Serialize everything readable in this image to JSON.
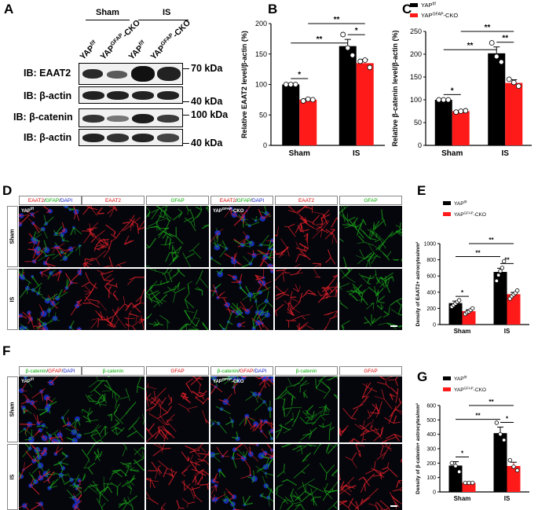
{
  "panels": {
    "A": "A",
    "B": "B",
    "C": "C",
    "D": "D",
    "E": "E",
    "F": "F",
    "G": "G"
  },
  "western": {
    "groups": [
      "Sham",
      "IS"
    ],
    "lanes": [
      {
        "base": "YAP",
        "sup": "f/f"
      },
      {
        "base": "YAP",
        "sup": "GFAP",
        "suffix": "-CKO"
      },
      {
        "base": "YAP",
        "sup": "f/f"
      },
      {
        "base": "YAP",
        "sup": "GFAP",
        "suffix": "-CKO"
      }
    ],
    "blots": [
      {
        "label": "IB: EAAT2",
        "mw": "70 kDa",
        "mw_side": "top"
      },
      {
        "label": "IB: β-actin",
        "mw": "40 kDa",
        "mw_side": "bottom"
      },
      {
        "label": "IB: β-catenin",
        "mw": "100 kDa",
        "mw_side": "top"
      },
      {
        "label": "IB: β-actin",
        "mw": "40 kDa",
        "mw_side": "bottom"
      }
    ]
  },
  "legend": {
    "ff": {
      "base": "YAP",
      "sup": "f/f"
    },
    "cko": {
      "base": "YAP",
      "sup": "GFAP",
      "suffix": "-CKO"
    }
  },
  "colors": {
    "ff": "#000000",
    "cko": "#ff1a1a",
    "merge_red": "#e8202a",
    "merge_green": "#1aa51a",
    "merge_blue": "#1a33cc"
  },
  "chart_data": [
    {
      "panel": "B",
      "type": "bar",
      "ylabel": "Relative EAAT2 level/β-actin (%)",
      "categories": [
        "Sham",
        "IS"
      ],
      "ylim": [
        0,
        200
      ],
      "yticks": [
        0,
        50,
        100,
        150,
        200
      ],
      "series": [
        {
          "name": "YAP f/f",
          "values": [
            100,
            163
          ],
          "error": [
            2,
            11
          ],
          "points": [
            [
              100,
              100,
              100
            ],
            [
              182,
              160,
              148
            ]
          ]
        },
        {
          "name": "YAP GFAP-CKO",
          "values": [
            75,
            135
          ],
          "error": [
            2,
            6
          ],
          "points": [
            [
              73,
              76,
              75
            ],
            [
              138,
              140,
              128
            ]
          ]
        }
      ],
      "sig": [
        {
          "label": "*"
        },
        {
          "label": "**"
        },
        {
          "label": "*"
        },
        {
          "label": "**"
        }
      ]
    },
    {
      "panel": "C",
      "type": "bar",
      "ylabel": "Relative β-catenin level/β-actin (%)",
      "categories": [
        "Sham",
        "IS"
      ],
      "ylim": [
        0,
        250
      ],
      "yticks": [
        0,
        50,
        100,
        150,
        200,
        250
      ],
      "series": [
        {
          "name": "YAP f/f",
          "values": [
            100,
            202
          ],
          "error": [
            1,
            14
          ],
          "points": [
            [
              100,
              100,
              100
            ],
            [
              225,
              195,
              183
            ]
          ]
        },
        {
          "name": "YAP GFAP-CKO",
          "values": [
            75,
            137
          ],
          "error": [
            1,
            7
          ],
          "points": [
            [
              73,
              75,
              76
            ],
            [
              145,
              138,
              130
            ]
          ]
        }
      ],
      "sig": [
        {
          "label": "*"
        },
        {
          "label": "**"
        },
        {
          "label": "**"
        },
        {
          "label": "**"
        }
      ]
    },
    {
      "panel": "E",
      "type": "bar",
      "ylabel": "Density of EAAT2+ astrocytes/mm²",
      "categories": [
        "Sham",
        "IS"
      ],
      "ylim": [
        0,
        1000
      ],
      "yticks": [
        0,
        200,
        400,
        600,
        800,
        1000
      ],
      "series": [
        {
          "name": "YAP f/f",
          "values": [
            265,
            650
          ],
          "error": [
            25,
            45
          ],
          "points": [
            [
              220,
              240,
              260,
              280,
              300
            ],
            [
              540,
              610,
              660,
              700,
              780
            ]
          ]
        },
        {
          "name": "YAP GFAP-CKO",
          "values": [
            165,
            375
          ],
          "error": [
            18,
            22
          ],
          "points": [
            [
              130,
              150,
              160,
              180,
              200
            ],
            [
              320,
              350,
              370,
              390,
              420
            ]
          ]
        }
      ],
      "sig": [
        {
          "label": "*"
        },
        {
          "label": "**"
        },
        {
          "label": "**"
        },
        {
          "label": "**"
        }
      ]
    },
    {
      "panel": "G",
      "type": "bar",
      "ylabel": "Density of β-catenin+ astrocytes/mm²",
      "categories": [
        "Sham",
        "IS"
      ],
      "ylim": [
        0,
        600
      ],
      "yticks": [
        0,
        100,
        200,
        300,
        400,
        500,
        600
      ],
      "series": [
        {
          "name": "YAP f/f",
          "values": [
            183,
            408
          ],
          "error": [
            27,
            42
          ],
          "points": [
            [
              200,
              180,
              140
            ],
            [
              480,
              400,
              360
            ]
          ]
        },
        {
          "name": "YAP GFAP-CKO",
          "values": [
            63,
            180
          ],
          "error": [
            2,
            26
          ],
          "points": [
            [
              63,
              63,
              63
            ],
            [
              220,
              175,
              150
            ]
          ]
        }
      ],
      "sig": [
        {
          "label": "*"
        },
        {
          "label": "**"
        },
        {
          "label": "*"
        },
        {
          "label": "**"
        }
      ]
    }
  ],
  "micro_D": {
    "headers": [
      {
        "parts": [
          {
            "t": "EAAT2",
            "c": "red"
          },
          {
            "t": "/",
            "c": "k"
          },
          {
            "t": "GFAP",
            "c": "green"
          },
          {
            "t": "/",
            "c": "k"
          },
          {
            "t": "DAPI",
            "c": "blue"
          }
        ]
      },
      {
        "parts": [
          {
            "t": "EAAT2",
            "c": "red"
          }
        ]
      },
      {
        "parts": [
          {
            "t": "GFAP",
            "c": "green"
          }
        ]
      },
      {
        "parts": [
          {
            "t": "EAAT2",
            "c": "red"
          },
          {
            "t": "/",
            "c": "k"
          },
          {
            "t": "GFAP",
            "c": "green"
          },
          {
            "t": "/",
            "c": "k"
          },
          {
            "t": "DAPI",
            "c": "blue"
          }
        ]
      },
      {
        "parts": [
          {
            "t": "EAAT2",
            "c": "red"
          }
        ]
      },
      {
        "parts": [
          {
            "t": "GFAP",
            "c": "green"
          }
        ]
      }
    ],
    "rows": [
      "Sham",
      "IS"
    ],
    "geno_labels": [
      {
        "base": "YAP",
        "sup": "f/f"
      },
      {
        "base": "YAP",
        "sup": "GFAP",
        "suffix": "-CKO"
      }
    ]
  },
  "micro_F": {
    "headers": [
      {
        "parts": [
          {
            "t": "β-catenin",
            "c": "green"
          },
          {
            "t": "/",
            "c": "k"
          },
          {
            "t": "GFAP",
            "c": "red"
          },
          {
            "t": "/",
            "c": "k"
          },
          {
            "t": "DAPI",
            "c": "blue"
          }
        ]
      },
      {
        "parts": [
          {
            "t": "β-catenin",
            "c": "green"
          }
        ]
      },
      {
        "parts": [
          {
            "t": "GFAP",
            "c": "red"
          }
        ]
      },
      {
        "parts": [
          {
            "t": "β-catenin",
            "c": "green"
          },
          {
            "t": "/",
            "c": "k"
          },
          {
            "t": "GFAP",
            "c": "red"
          },
          {
            "t": "/",
            "c": "k"
          },
          {
            "t": "DAPI",
            "c": "blue"
          }
        ]
      },
      {
        "parts": [
          {
            "t": "β-catenin",
            "c": "green"
          }
        ]
      },
      {
        "parts": [
          {
            "t": "GFAP",
            "c": "red"
          }
        ]
      }
    ],
    "rows": [
      "Sham",
      "IS"
    ],
    "geno_labels": [
      {
        "base": "YAP",
        "sup": "f/f"
      },
      {
        "base": "YAP",
        "sup": "GFAP",
        "suffix": "-CKO"
      }
    ]
  }
}
